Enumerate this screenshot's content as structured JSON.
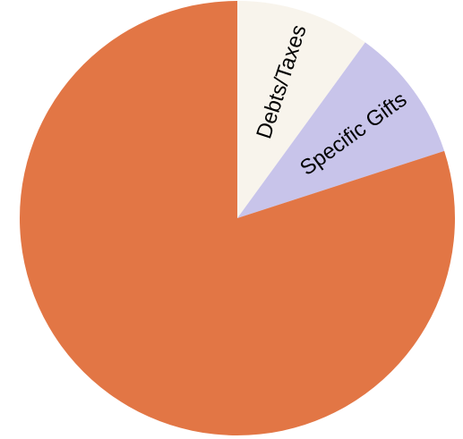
{
  "chart_data": {
    "type": "pie",
    "start_angle_deg": 0,
    "direction": "clockwise",
    "legend": "none",
    "slices": [
      {
        "label": "Debts/Taxes",
        "value": 10,
        "color": "#f8f4ec",
        "label_visible": true
      },
      {
        "label": "Specific Gifts",
        "value": 10,
        "color": "#c8c4ea",
        "label_visible": true
      },
      {
        "label": "",
        "value": 80,
        "color": "#e27645",
        "label_visible": false
      }
    ]
  }
}
